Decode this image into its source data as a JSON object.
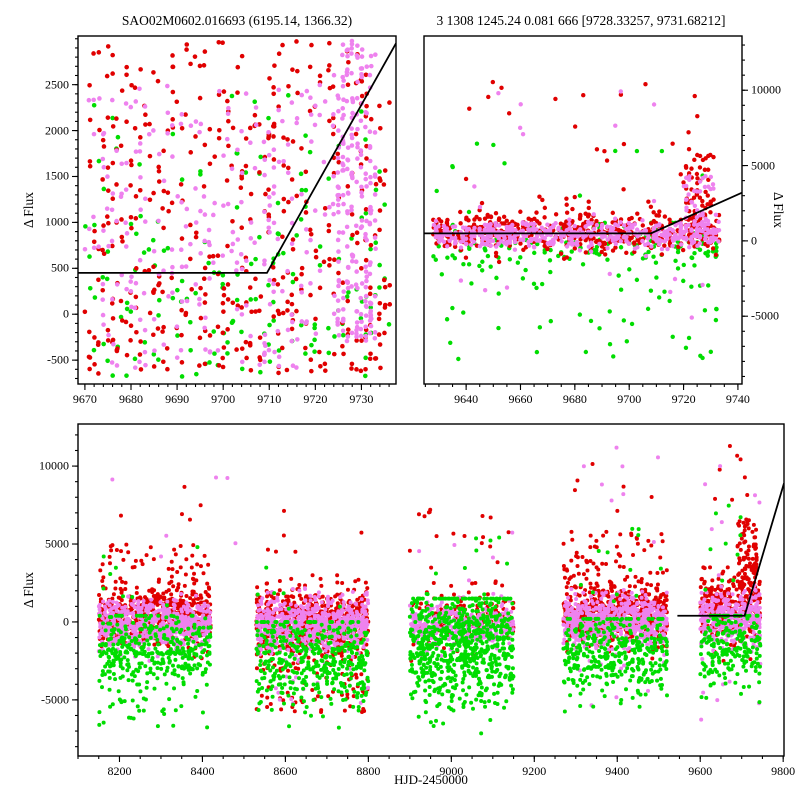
{
  "figure": {
    "background": "#ffffff"
  },
  "colors": {
    "red": "#e00000",
    "green": "#00dd00",
    "violet": "#ee82ee",
    "line": "#000000",
    "axis": "#000000"
  },
  "chart_data": [
    {
      "id": "p1",
      "type": "scatter",
      "title": "SAO02M0602.016693 (6195.14, 1366.32)",
      "xlabel": "",
      "ylabel": "Δ Flux",
      "ylabel_side": "left",
      "xlim": [
        9668.5,
        9737.5
      ],
      "ylim": [
        -760,
        3030
      ],
      "xticks": [
        9670,
        9680,
        9690,
        9700,
        9710,
        9720,
        9730
      ],
      "yticks": [
        -500,
        0,
        500,
        1000,
        1500,
        2000,
        2500
      ],
      "xminor": 2,
      "yminor": 100,
      "grid": false,
      "model_line": [
        [
          9668.5,
          450
        ],
        [
          9709.5,
          450
        ],
        [
          9737.5,
          2950
        ]
      ],
      "series": [
        {
          "name": "green",
          "color_key": "green",
          "clusters": [
            {
              "n": 130,
              "x": [
                9670,
                9736
              ],
              "snap": 1,
              "dist": "uniform",
              "y": [
                -680,
                1100
              ]
            },
            {
              "n": 35,
              "x": [
                9670,
                9736
              ],
              "snap": 1,
              "dist": "uniform",
              "y": [
                1100,
                2400
              ]
            }
          ]
        },
        {
          "name": "red",
          "color_key": "red",
          "clusters": [
            {
              "n": 300,
              "x": [
                9670,
                9736
              ],
              "snap": 1,
              "dist": "uniform",
              "y": [
                250,
                2980
              ]
            },
            {
              "n": 150,
              "x": [
                9670,
                9736
              ],
              "snap": 1,
              "dist": "uniform",
              "y": [
                -650,
                250
              ]
            }
          ]
        },
        {
          "name": "violet",
          "color_key": "violet",
          "clusters": [
            {
              "n": 250,
              "x": [
                9670,
                9723
              ],
              "snap": 1,
              "dist": "uniform",
              "y": [
                -600,
                2500
              ]
            },
            {
              "n": 230,
              "x": [
                9724,
                9733
              ],
              "snap": 1,
              "dist": "uniform",
              "y": [
                -300,
                2980
              ]
            }
          ]
        }
      ]
    },
    {
      "id": "p2",
      "type": "scatter",
      "title": "3 1308 1245.24 0.081 666 [9728.33257, 9731.68212]",
      "xlabel": "",
      "ylabel": "Δ Flux",
      "ylabel_side": "right",
      "xlim": [
        9624.5,
        9741.5
      ],
      "ylim": [
        -9500,
        13600
      ],
      "xticks": [
        9640,
        9660,
        9680,
        9700,
        9720,
        9740
      ],
      "yticks": [
        -5000,
        0,
        5000,
        10000
      ],
      "xminor": 5,
      "yminor": 1000,
      "grid": false,
      "model_line": [
        [
          9624.5,
          500
        ],
        [
          9708,
          500
        ],
        [
          9741.5,
          3200
        ]
      ],
      "series": [
        {
          "name": "green",
          "color_key": "green",
          "clusters": [
            {
              "n": 150,
              "x": [
                9628,
                9733
              ],
              "snap": 1,
              "dist": "normal",
              "mean": -400,
              "sd": 900,
              "clip": [
                -3500,
                1200
              ]
            },
            {
              "n": 45,
              "x": [
                9628,
                9733
              ],
              "snap": 1,
              "dist": "uniform",
              "y": [
                -7900,
                -1800
              ]
            },
            {
              "n": 12,
              "x": [
                9628,
                9733
              ],
              "snap": 1,
              "dist": "uniform",
              "y": [
                1500,
                6500
              ]
            }
          ]
        },
        {
          "name": "red",
          "color_key": "red",
          "clusters": [
            {
              "n": 520,
              "x": [
                9628,
                9733
              ],
              "snap": 1,
              "dist": "normal",
              "mean": 600,
              "sd": 650,
              "clip": [
                -1500,
                2600
              ]
            },
            {
              "n": 26,
              "x": [
                9635,
                9733
              ],
              "snap": 1,
              "dist": "uniform",
              "y": [
                2600,
                11000
              ]
            },
            {
              "n": 60,
              "x": [
                9719,
                9731
              ],
              "snap": 1,
              "dist": "uniform",
              "y": [
                1200,
                5800
              ]
            }
          ]
        },
        {
          "name": "violet",
          "color_key": "violet",
          "clusters": [
            {
              "n": 480,
              "x": [
                9628,
                9733
              ],
              "snap": 1,
              "dist": "normal",
              "mean": 450,
              "sd": 450,
              "clip": [
                -1200,
                2200
              ]
            },
            {
              "n": 40,
              "x": [
                9720,
                9731
              ],
              "snap": 1,
              "dist": "uniform",
              "y": [
                800,
                4300
              ]
            },
            {
              "n": 10,
              "x": [
                9640,
                9733
              ],
              "snap": 1,
              "dist": "uniform",
              "y": [
                2200,
                10500
              ]
            },
            {
              "n": 8,
              "x": [
                9628,
                9733
              ],
              "snap": 1,
              "dist": "uniform",
              "y": [
                -6000,
                -1500
              ]
            }
          ]
        }
      ]
    },
    {
      "id": "p3",
      "type": "scatter",
      "title": "",
      "xlabel": "HJD-2450000",
      "ylabel": "Δ Flux",
      "ylabel_side": "left",
      "xlim": [
        8100,
        9802
      ],
      "ylim": [
        -8600,
        12700
      ],
      "xticks": [
        8200,
        8400,
        8600,
        8800,
        9000,
        9200,
        9400,
        9600,
        9800
      ],
      "yticks": [
        -5000,
        0,
        5000,
        10000
      ],
      "xminor": 50,
      "yminor": 1000,
      "grid": false,
      "model_line": [
        [
          9545,
          400
        ],
        [
          9707,
          400
        ],
        [
          9802,
          8900
        ]
      ],
      "series": [
        {
          "name": "red",
          "color_key": "red",
          "clusters": [
            {
              "n": 600,
              "x": [
                8150,
                8420
              ],
              "dist": "normal",
              "mean": 300,
              "sd": 900,
              "clip": [
                -3000,
                3500
              ]
            },
            {
              "n": 50,
              "x": [
                8150,
                8420
              ],
              "dist": "uniform",
              "y": [
                2000,
                5200
              ]
            },
            {
              "n": 5,
              "x": [
                8150,
                8420
              ],
              "dist": "uniform",
              "y": [
                5500,
                9500
              ]
            },
            {
              "n": 650,
              "x": [
                8530,
                8800
              ],
              "dist": "normal",
              "mean": 0,
              "sd": 1100,
              "clip": [
                -4000,
                3000
              ]
            },
            {
              "n": 70,
              "x": [
                8530,
                8800
              ],
              "dist": "uniform",
              "y": [
                -5800,
                -2000
              ]
            },
            {
              "n": 6,
              "x": [
                8530,
                8800
              ],
              "dist": "uniform",
              "y": [
                3500,
                8000
              ]
            },
            {
              "n": 150,
              "x": [
                8900,
                9150
              ],
              "dist": "normal",
              "mean": 200,
              "sd": 900,
              "clip": [
                -2500,
                2500
              ]
            },
            {
              "n": 20,
              "x": [
                8900,
                9150
              ],
              "dist": "uniform",
              "y": [
                2000,
                7500
              ]
            },
            {
              "n": 600,
              "x": [
                9270,
                9520
              ],
              "dist": "normal",
              "mean": 500,
              "sd": 1000,
              "clip": [
                -2500,
                3500
              ]
            },
            {
              "n": 60,
              "x": [
                9270,
                9520
              ],
              "dist": "uniform",
              "y": [
                2500,
                5800
              ]
            },
            {
              "n": 6,
              "x": [
                9270,
                9520
              ],
              "dist": "uniform",
              "y": [
                6000,
                11500
              ]
            },
            {
              "n": 330,
              "x": [
                9600,
                9745
              ],
              "dist": "normal",
              "mean": 800,
              "sd": 1100,
              "clip": [
                -2500,
                3500
              ]
            },
            {
              "n": 80,
              "x": [
                9690,
                9738
              ],
              "dist": "uniform",
              "y": [
                2000,
                6800
              ]
            },
            {
              "n": 8,
              "x": [
                9600,
                9745
              ],
              "dist": "uniform",
              "y": [
                7000,
                11800
              ]
            }
          ]
        },
        {
          "name": "violet",
          "color_key": "violet",
          "clusters": [
            {
              "n": 600,
              "x": [
                8150,
                8420
              ],
              "dist": "normal",
              "mean": -200,
              "sd": 800,
              "clip": [
                -2800,
                2200
              ]
            },
            {
              "n": 650,
              "x": [
                8530,
                8800
              ],
              "dist": "normal",
              "mean": -200,
              "sd": 900,
              "clip": [
                -3500,
                2200
              ]
            },
            {
              "n": 15,
              "x": [
                8530,
                8800
              ],
              "dist": "uniform",
              "y": [
                -6000,
                -3000
              ]
            },
            {
              "n": 350,
              "x": [
                8900,
                9150
              ],
              "dist": "normal",
              "mean": -200,
              "sd": 700,
              "clip": [
                -2500,
                1800
              ]
            },
            {
              "n": 5,
              "x": [
                8900,
                9150
              ],
              "dist": "uniform",
              "y": [
                2000,
                6000
              ]
            },
            {
              "n": 600,
              "x": [
                9270,
                9520
              ],
              "dist": "normal",
              "mean": 0,
              "sd": 800,
              "clip": [
                -2500,
                2500
              ]
            },
            {
              "n": 10,
              "x": [
                9270,
                9520
              ],
              "dist": "uniform",
              "y": [
                -5500,
                -2500
              ]
            },
            {
              "n": 8,
              "x": [
                9270,
                9520
              ],
              "dist": "uniform",
              "y": [
                5000,
                12300
              ]
            },
            {
              "n": 6,
              "x": [
                8150,
                8800
              ],
              "dist": "uniform",
              "y": [
                4000,
                11500
              ]
            },
            {
              "n": 300,
              "x": [
                9600,
                9745
              ],
              "dist": "normal",
              "mean": 300,
              "sd": 900,
              "clip": [
                -2500,
                3000
              ]
            },
            {
              "n": 8,
              "x": [
                9600,
                9745
              ],
              "dist": "uniform",
              "y": [
                -6500,
                -2500
              ]
            },
            {
              "n": 6,
              "x": [
                9600,
                9745
              ],
              "dist": "uniform",
              "y": [
                5500,
                12000
              ]
            }
          ]
        },
        {
          "name": "green",
          "color_key": "green",
          "clusters": [
            {
              "n": 350,
              "x": [
                8150,
                8420
              ],
              "dist": "normal",
              "mean": -1800,
              "sd": 1300,
              "clip": [
                -6600,
                400
              ]
            },
            {
              "n": 30,
              "x": [
                8150,
                8420
              ],
              "dist": "uniform",
              "y": [
                -6800,
                -4000
              ]
            },
            {
              "n": 8,
              "x": [
                8150,
                8420
              ],
              "dist": "uniform",
              "y": [
                800,
                5200
              ]
            },
            {
              "n": 400,
              "x": [
                8530,
                8800
              ],
              "dist": "normal",
              "mean": -2500,
              "sd": 1500,
              "clip": [
                -7800,
                0
              ]
            },
            {
              "n": 6,
              "x": [
                8530,
                8800
              ],
              "dist": "uniform",
              "y": [
                500,
                4000
              ]
            },
            {
              "n": 700,
              "x": [
                8900,
                9150
              ],
              "dist": "normal",
              "mean": -1500,
              "sd": 1900,
              "clip": [
                -8300,
                1500
              ]
            },
            {
              "n": 10,
              "x": [
                8900,
                9150
              ],
              "dist": "uniform",
              "y": [
                1500,
                5500
              ]
            },
            {
              "n": 350,
              "x": [
                9270,
                9520
              ],
              "dist": "normal",
              "mean": -2000,
              "sd": 1500,
              "clip": [
                -7600,
                200
              ]
            },
            {
              "n": 12,
              "x": [
                9270,
                9520
              ],
              "dist": "uniform",
              "y": [
                1000,
                6200
              ]
            },
            {
              "n": 200,
              "x": [
                9600,
                9745
              ],
              "dist": "normal",
              "mean": -1500,
              "sd": 1500,
              "clip": [
                -7000,
                400
              ]
            },
            {
              "n": 10,
              "x": [
                9600,
                9745
              ],
              "dist": "uniform",
              "y": [
                1500,
                8500
              ]
            }
          ]
        }
      ]
    }
  ]
}
